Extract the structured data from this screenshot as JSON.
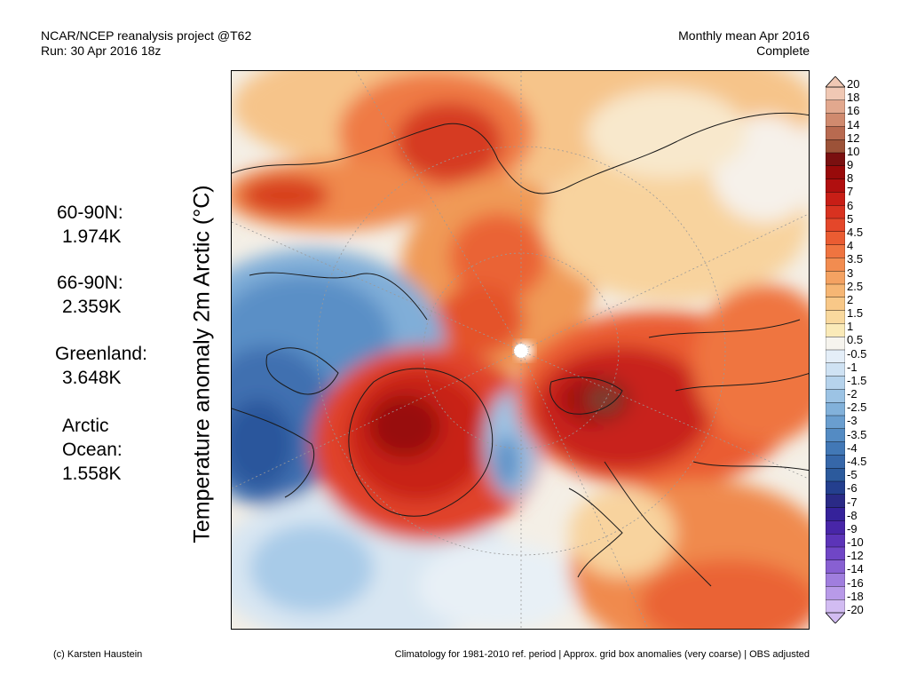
{
  "header": {
    "left_line1": "NCAR/NCEP reanalysis project @T62",
    "left_line2": "Run: 30 Apr 2016 18z",
    "right_line1": "Monthly mean Apr 2016",
    "right_line2": "Complete"
  },
  "stats": [
    {
      "label": "60-90N:",
      "value": "1.974K"
    },
    {
      "label": "66-90N:",
      "value": "2.359K"
    },
    {
      "label": "Greenland:",
      "value": "3.648K"
    },
    {
      "label": "Arctic",
      "label2": "Ocean:",
      "value": "1.558K"
    }
  ],
  "y_axis_label": "Temperature anomaly 2m Arctic (°C)",
  "colorbar": {
    "labels": [
      "20",
      "18",
      "16",
      "14",
      "12",
      "10",
      "9",
      "8",
      "7",
      "6",
      "5",
      "4.5",
      "4",
      "3.5",
      "3",
      "2.5",
      "2",
      "1.5",
      "1",
      "0.5",
      "-0.5",
      "-1",
      "-1.5",
      "-2",
      "-2.5",
      "-3",
      "-3.5",
      "-4",
      "-4.5",
      "-5",
      "-6",
      "-7",
      "-8",
      "-9",
      "-10",
      "-12",
      "-14",
      "-16",
      "-18",
      "-20"
    ],
    "colors": [
      "#f0c8b4",
      "#e2a88e",
      "#d08a6e",
      "#b86a50",
      "#9c5238",
      "#7a1010",
      "#980a0a",
      "#b00f0f",
      "#c81e16",
      "#d83220",
      "#e4472a",
      "#ea5c32",
      "#ef7440",
      "#f28c50",
      "#f4a262",
      "#f6b674",
      "#f8c888",
      "#f9d99e",
      "#faeab8",
      "#f6f4ee",
      "#e4eef8",
      "#cfe2f3",
      "#b6d3ec",
      "#9cc3e4",
      "#82b1da",
      "#6a9ecf",
      "#548bc3",
      "#4278b6",
      "#3667a9",
      "#2c5a9c",
      "#243f8e",
      "#2a2a86",
      "#35229a",
      "#4826a8",
      "#5c34b8",
      "#7046c6",
      "#8860d2",
      "#a07ede",
      "#b89ae8",
      "#d2bcf2"
    ]
  },
  "footer": {
    "left": "(c) Karsten Haustein",
    "right": "Climatology for 1981-2010 ref. period | Approx. grid box anomalies (very coarse) | OBS adjusted"
  }
}
